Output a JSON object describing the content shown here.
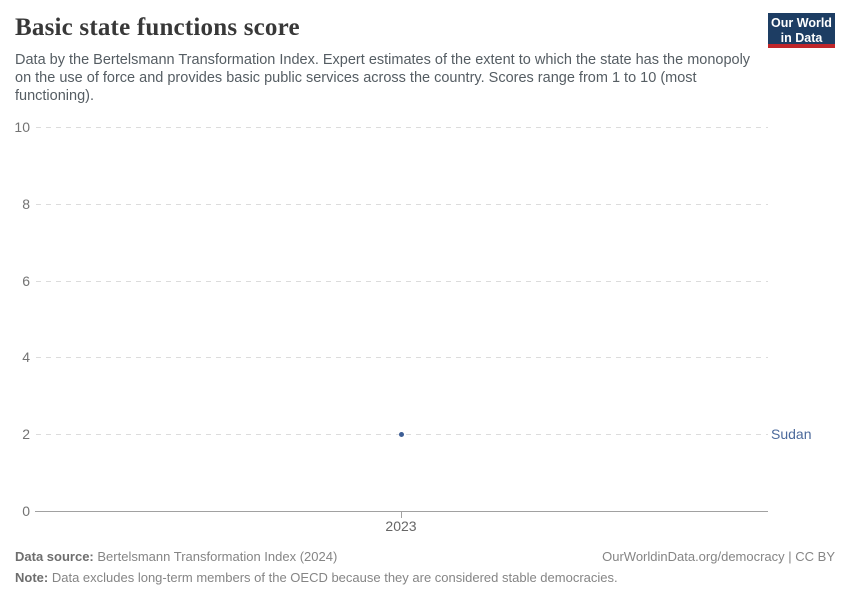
{
  "header": {
    "title": "Basic state functions score",
    "subtitle": "Data by the Bertelsmann Transformation Index. Expert estimates of the extent to which the state has the monopoly on the use of force and provides basic public services across the country. Scores range from 1 to 10 (most functioning)."
  },
  "logo": {
    "line1": "Our World",
    "line2": "in Data"
  },
  "chart_data": {
    "type": "scatter",
    "title": "Basic state functions score",
    "x": [
      2023
    ],
    "series": [
      {
        "name": "Sudan",
        "values": [
          2
        ]
      }
    ],
    "xticks": [
      "2023"
    ],
    "yticks": [
      0,
      2,
      4,
      6,
      8,
      10
    ],
    "ylim": [
      0,
      10
    ],
    "xlabel": "",
    "ylabel": "",
    "grid": "horizontal-dashed",
    "legend": "entity label right of plot",
    "entity_label": "Sudan"
  },
  "colors": {
    "series_marker": "#3d5e95",
    "entity_label": "#4c6a9c",
    "logo_bg": "#1d3d63",
    "logo_stripe": "#c0262a",
    "grid": "#dcdcdc",
    "axis": "#a1a1a1"
  },
  "footer": {
    "data_source_label": "Data source:",
    "data_source_value": "Bertelsmann Transformation Index (2024)",
    "credit": "OurWorldinData.org/democracy | CC BY",
    "note_label": "Note:",
    "note_value": "Data excludes long-term members of the OECD because they are considered stable democracies."
  }
}
